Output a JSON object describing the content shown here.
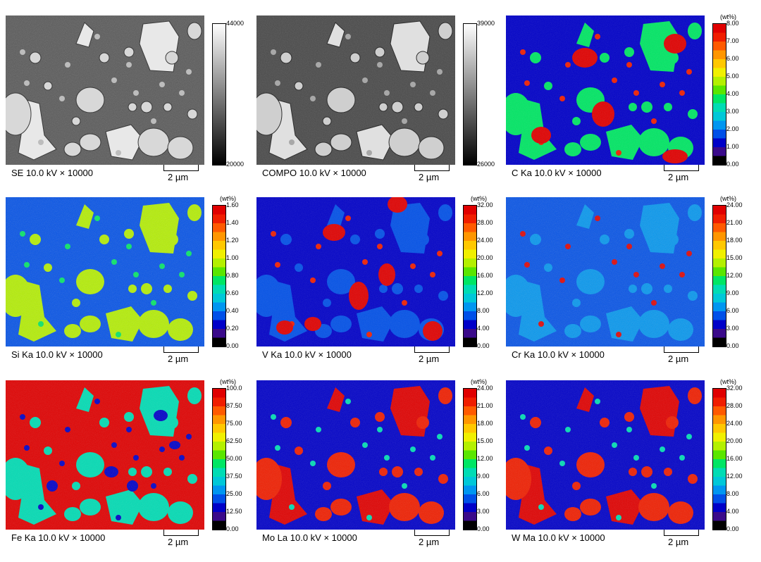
{
  "scalebar_label": "2 µm",
  "rainbow": [
    "#000000",
    "#3a0a8a",
    "#0000c8",
    "#0050e8",
    "#0096f0",
    "#00c8d8",
    "#00dcb4",
    "#00e664",
    "#5ae600",
    "#b4f000",
    "#f0f000",
    "#ffc800",
    "#ff9600",
    "#ff5a00",
    "#f01e00",
    "#e00000"
  ],
  "panels": [
    {
      "caption": "SE 10.0 kV  × 10000",
      "kind": "sem",
      "unit": "",
      "ticks": [
        "44000",
        "20000"
      ],
      "gray_top": "#ffffff",
      "gray_bottom": "#000000"
    },
    {
      "caption": "COMPO 10.0 kV  × 10000",
      "kind": "compo",
      "unit": "",
      "ticks": [
        "39000",
        "26000"
      ],
      "gray_top": "#ffffff",
      "gray_bottom": "#000000"
    },
    {
      "caption": "C Ka 10.0 kV  × 10000",
      "kind": "c",
      "unit": "(wt%)",
      "ticks": [
        "8.00",
        "7.00",
        "6.00",
        "5.00",
        "4.00",
        "3.00",
        "2.00",
        "1.00",
        "0.00"
      ]
    },
    {
      "caption": "Si Ka 10.0 kV  × 10000",
      "kind": "si",
      "unit": "(wt%)",
      "ticks": [
        "1.60",
        "1.40",
        "1.20",
        "1.00",
        "0.80",
        "0.60",
        "0.40",
        "0.20",
        "0.00"
      ]
    },
    {
      "caption": "V Ka 10.0 kV  × 10000",
      "kind": "v",
      "unit": "(wt%)",
      "ticks": [
        "32.00",
        "28.00",
        "24.00",
        "20.00",
        "16.00",
        "12.00",
        "8.00",
        "4.00",
        "0.00"
      ]
    },
    {
      "caption": "Cr Ka 10.0 kV  × 10000",
      "kind": "cr",
      "unit": "(wt%)",
      "ticks": [
        "24.00",
        "21.00",
        "18.00",
        "15.00",
        "12.00",
        "9.00",
        "6.00",
        "3.00",
        "0.00"
      ]
    },
    {
      "caption": "Fe Ka 10.0 kV  × 10000",
      "kind": "fe",
      "unit": "(wt%)",
      "ticks": [
        "100.0",
        "87.50",
        "75.00",
        "62.50",
        "50.00",
        "37.50",
        "25.00",
        "12.50",
        "0.00"
      ]
    },
    {
      "caption": "Mo La 10.0 kV  × 10000",
      "kind": "mo",
      "unit": "(wt%)",
      "ticks": [
        "24.00",
        "21.00",
        "18.00",
        "15.00",
        "12.00",
        "9.00",
        "6.00",
        "3.00",
        "0.00"
      ]
    },
    {
      "caption": "W Ma 10.0 kV  × 10000",
      "kind": "w",
      "unit": "(wt%)",
      "ticks": [
        "32.00",
        "28.00",
        "24.00",
        "20.00",
        "16.00",
        "12.00",
        "8.00",
        "4.00",
        "0.00"
      ]
    }
  ]
}
